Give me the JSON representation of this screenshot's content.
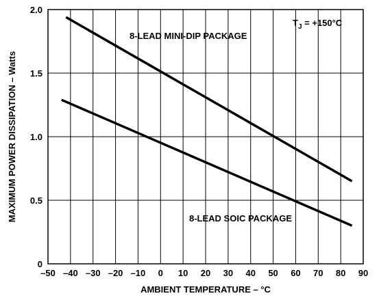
{
  "chart_data": {
    "type": "line",
    "xlabel": "AMBIENT TEMPERATURE – °C",
    "ylabel": "MAXIMUM POWER DISSIPATION – Watts",
    "xlim": [
      -50,
      90
    ],
    "ylim": [
      0,
      2.0
    ],
    "x_ticks": [
      "–50",
      "–40",
      "–30",
      "–20",
      "–10",
      "0",
      "10",
      "20",
      "30",
      "40",
      "50",
      "60",
      "70",
      "80",
      "90"
    ],
    "y_ticks": [
      "0",
      "0.5",
      "1.0",
      "1.5",
      "2.0"
    ],
    "grid": true,
    "annotation": {
      "prefix": "T",
      "subscript": "J",
      "text": " = +150°C"
    },
    "series": [
      {
        "name": "8-LEAD MINI-DIP PACKAGE",
        "x": [
          -42,
          85
        ],
        "y": [
          1.94,
          0.65
        ]
      },
      {
        "name": "8-LEAD SOIC PACKAGE",
        "x": [
          -44,
          85
        ],
        "y": [
          1.29,
          0.3
        ]
      }
    ]
  }
}
